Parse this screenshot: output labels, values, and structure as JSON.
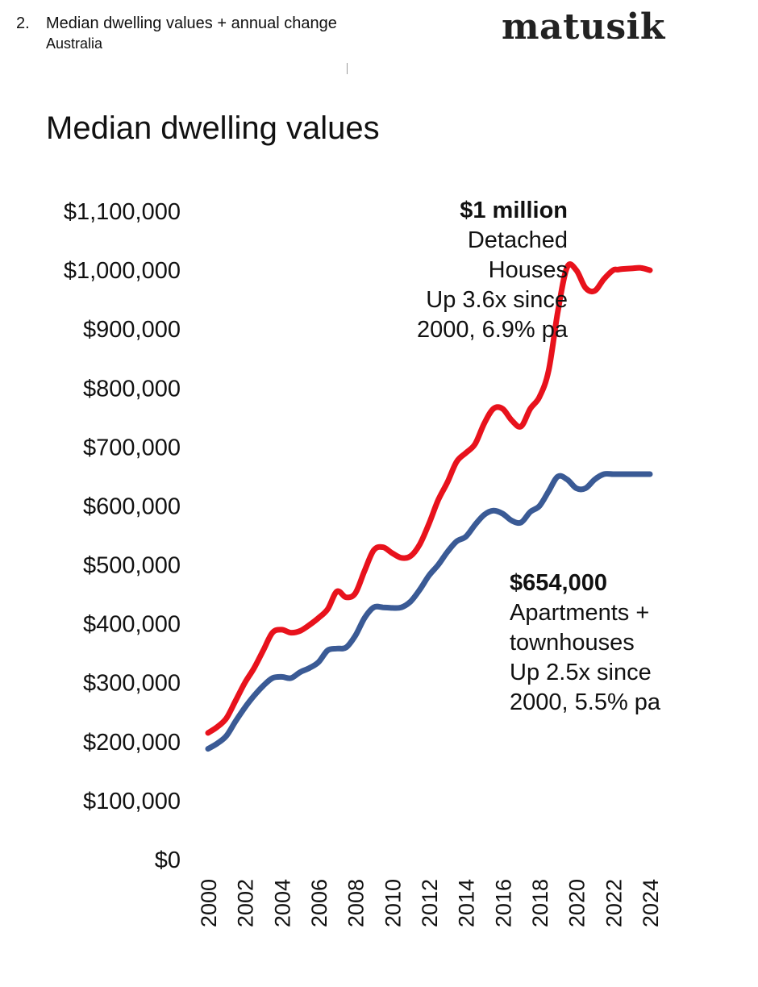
{
  "header": {
    "number": "2.",
    "title": "Median dwelling values + annual change",
    "subtitle": "Australia",
    "brand": "matusik"
  },
  "chart_data": {
    "type": "line",
    "title": "Median dwelling values",
    "xlabel": "",
    "ylabel": "",
    "ylim": [
      0,
      1100000
    ],
    "y_ticks": [
      "$1,100,000",
      "$1,000,000",
      "$900,000",
      "$800,000",
      "$700,000",
      "$600,000",
      "$500,000",
      "$400,000",
      "$300,000",
      "$200,000",
      "$100,000",
      "$0"
    ],
    "y_tick_values": [
      1100000,
      1000000,
      900000,
      800000,
      700000,
      600000,
      500000,
      400000,
      300000,
      200000,
      100000,
      0
    ],
    "x_ticks": [
      "2000",
      "2002",
      "2004",
      "2006",
      "2008",
      "2010",
      "2012",
      "2014",
      "2016",
      "2018",
      "2020",
      "2022",
      "2024"
    ],
    "x_tick_values": [
      2000,
      2002,
      2004,
      2006,
      2008,
      2010,
      2012,
      2014,
      2016,
      2018,
      2020,
      2022,
      2024
    ],
    "xlim": [
      2000,
      2024
    ],
    "grid": false,
    "series": [
      {
        "name": "Detached Houses",
        "color": "#e8121c",
        "x": [
          2000,
          2000.5,
          2001,
          2001.5,
          2002,
          2002.5,
          2003,
          2003.5,
          2004,
          2004.5,
          2005,
          2005.5,
          2006,
          2006.5,
          2007,
          2007.5,
          2008,
          2008.5,
          2009,
          2009.5,
          2010,
          2010.5,
          2011,
          2011.5,
          2012,
          2012.5,
          2013,
          2013.5,
          2014,
          2014.5,
          2015,
          2015.5,
          2016,
          2016.5,
          2017,
          2017.5,
          2018,
          2018.5,
          2019,
          2019.5,
          2020,
          2020.5,
          2021,
          2021.5,
          2022,
          2022.25,
          2022.5,
          2023,
          2023.5,
          2024
        ],
        "values": [
          215000,
          225000,
          240000,
          270000,
          300000,
          325000,
          355000,
          385000,
          390000,
          385000,
          388000,
          398000,
          410000,
          425000,
          455000,
          445000,
          452000,
          490000,
          525000,
          530000,
          520000,
          512000,
          515000,
          535000,
          570000,
          610000,
          640000,
          675000,
          690000,
          705000,
          740000,
          765000,
          765000,
          745000,
          735000,
          765000,
          785000,
          830000,
          930000,
          1005000,
          1000000,
          970000,
          965000,
          985000,
          1000000,
          1001000,
          1002000,
          1003000,
          1004000,
          1000000
        ]
      },
      {
        "name": "Apartments + townhouses",
        "color": "#3a5a95",
        "x": [
          2000,
          2000.5,
          2001,
          2001.5,
          2002,
          2002.5,
          2003,
          2003.5,
          2004,
          2004.5,
          2005,
          2005.5,
          2006,
          2006.5,
          2007,
          2007.5,
          2008,
          2008.5,
          2009,
          2009.5,
          2010,
          2010.5,
          2011,
          2011.5,
          2012,
          2012.5,
          2013,
          2013.5,
          2014,
          2014.5,
          2015,
          2015.5,
          2016,
          2016.5,
          2017,
          2017.5,
          2018,
          2018.5,
          2019,
          2019.5,
          2020,
          2020.5,
          2021,
          2021.5,
          2022,
          2022.5,
          2023,
          2023.5,
          2024
        ],
        "values": [
          188000,
          197000,
          210000,
          235000,
          258000,
          278000,
          295000,
          308000,
          310000,
          308000,
          318000,
          325000,
          335000,
          355000,
          358000,
          360000,
          380000,
          410000,
          428000,
          428000,
          427000,
          428000,
          438000,
          458000,
          482000,
          500000,
          522000,
          540000,
          548000,
          568000,
          585000,
          592000,
          587000,
          575000,
          572000,
          590000,
          600000,
          625000,
          650000,
          645000,
          630000,
          630000,
          645000,
          654000,
          654000,
          654000,
          654000,
          654000,
          654000
        ]
      }
    ],
    "annotations": [
      {
        "series": "Detached Houses",
        "value_label": "$1 million",
        "lines": [
          "Detached",
          "Houses",
          "Up 3.6x since",
          "2000, 6.9% pa"
        ]
      },
      {
        "series": "Apartments + townhouses",
        "value_label": "$654,000",
        "lines": [
          "Apartments +",
          "townhouses",
          "Up 2.5x since",
          "2000, 5.5% pa"
        ]
      }
    ]
  }
}
